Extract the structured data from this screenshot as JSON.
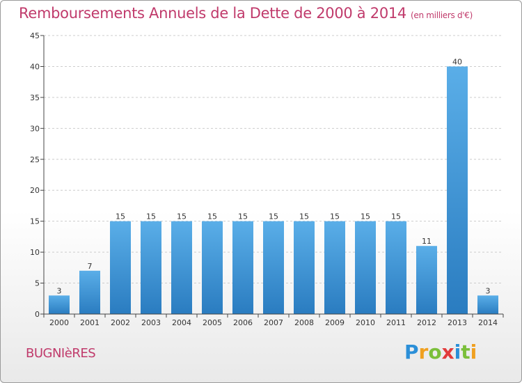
{
  "title": "Remboursements Annuels de la Dette de 2000 à 2014",
  "unit": "(en milliers d'€)",
  "commune": "BUGNIèRES",
  "logo": {
    "letters": [
      "P",
      "r",
      "o",
      "x",
      "i",
      "t",
      "i"
    ],
    "colors": [
      "#2b8fd8",
      "#f0a020",
      "#7bbf3a",
      "#e23b3b",
      "#2b8fd8",
      "#7bbf3a",
      "#f0a020"
    ]
  },
  "colors": {
    "bar_top": "#5aaee8",
    "bar_bottom": "#2a7cc0",
    "axis": "#444444",
    "grid": "#cccccc",
    "title": "#c03a6b"
  },
  "chart_data": {
    "type": "bar",
    "title": "Remboursements Annuels de la Dette de 2000 à 2014",
    "ylabel": "",
    "xlabel": "",
    "categories": [
      "2000",
      "2001",
      "2002",
      "2003",
      "2004",
      "2005",
      "2006",
      "2007",
      "2008",
      "2009",
      "2010",
      "2011",
      "2012",
      "2013",
      "2014"
    ],
    "values": [
      3,
      7,
      15,
      15,
      15,
      15,
      15,
      15,
      15,
      15,
      15,
      15,
      11,
      40,
      3
    ],
    "ylim": [
      0,
      45
    ],
    "yticks": [
      0,
      5,
      10,
      15,
      20,
      25,
      30,
      35,
      40,
      45
    ],
    "grid": true,
    "legend": "none"
  }
}
